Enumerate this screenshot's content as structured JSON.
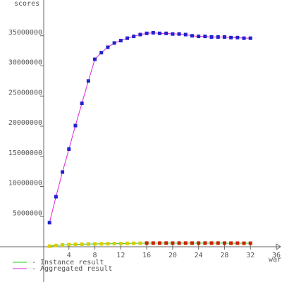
{
  "chart_data": {
    "type": "line",
    "ylabel": "scores",
    "xlabel": "war",
    "x": [
      1,
      2,
      3,
      4,
      5,
      6,
      7,
      8,
      9,
      10,
      11,
      12,
      13,
      14,
      15,
      16,
      17,
      18,
      19,
      20,
      21,
      22,
      23,
      24,
      25,
      26,
      27,
      28,
      29,
      30,
      31,
      32
    ],
    "xlim": [
      0,
      36
    ],
    "xticks": [
      4,
      8,
      12,
      16,
      20,
      24,
      28,
      32,
      36
    ],
    "ylim": [
      0,
      40000000
    ],
    "yticks": [
      5000000,
      10000000,
      15000000,
      20000000,
      25000000,
      30000000,
      35000000
    ],
    "series": [
      {
        "name": "- Instance result",
        "color": "#22cc22",
        "marker_colors": [
          "#ddcc00",
          "#ddcc00",
          "#ddcc00",
          "#ddcc00",
          "#ddcc00",
          "#ddcc00",
          "#ddcc00",
          "#ddcc00",
          "#ddcc00",
          "#ddcc00",
          "#ddcc00",
          "#ddcc00",
          "#ddcc00",
          "#ddcc00",
          "#ddcc00",
          "#cc2200",
          "#cc2200",
          "#cc2200",
          "#cc2200",
          "#cc2200",
          "#cc2200",
          "#cc2200",
          "#cc2200",
          "#cc2200",
          "#cc2200",
          "#cc2200",
          "#cc2200",
          "#cc2200",
          "#cc2200",
          "#cc2200",
          "#cc2200",
          "#cc2200"
        ],
        "values": [
          100000,
          200000,
          300000,
          350000,
          400000,
          420000,
          450000,
          470000,
          480000,
          500000,
          510000,
          530000,
          550000,
          570000,
          580000,
          600000,
          600000,
          600000,
          600000,
          600000,
          600000,
          600000,
          600000,
          600000,
          600000,
          600000,
          600000,
          600000,
          590000,
          590000,
          580000,
          580000
        ]
      },
      {
        "name": "- Aggregated result",
        "color": "#dd22dd",
        "marker_color": "#2222cc",
        "values": [
          4000000,
          8300000,
          12400000,
          16200000,
          20100000,
          23800000,
          27500000,
          31100000,
          32200000,
          33100000,
          33800000,
          34200000,
          34600000,
          34900000,
          35200000,
          35400000,
          35500000,
          35400000,
          35400000,
          35300000,
          35300000,
          35200000,
          35000000,
          34900000,
          34900000,
          34800000,
          34800000,
          34800000,
          34700000,
          34700000,
          34600000,
          34600000
        ]
      }
    ]
  }
}
